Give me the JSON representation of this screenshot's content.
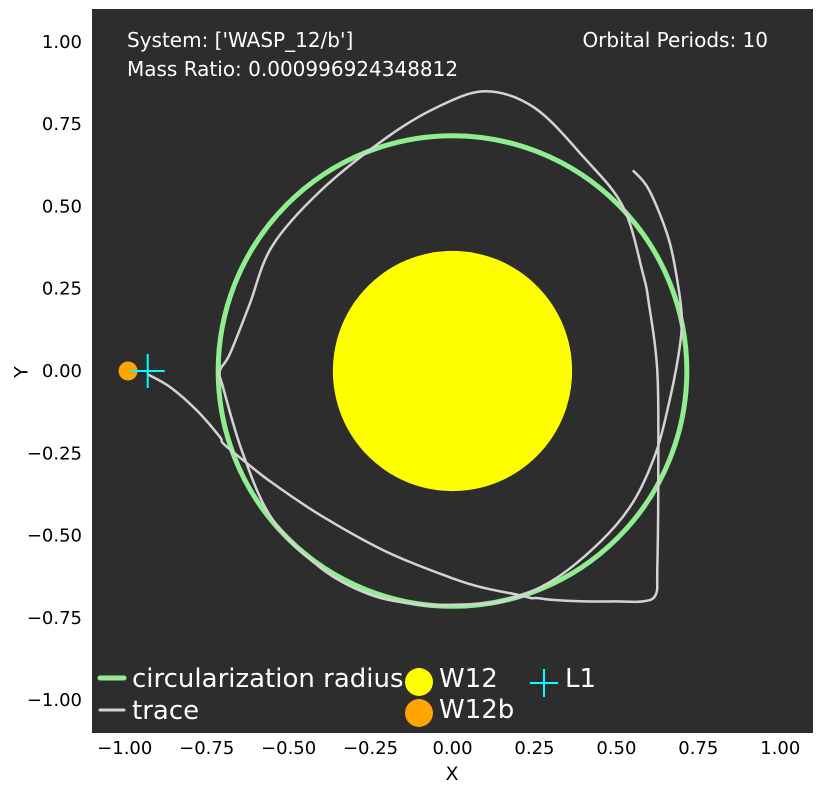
{
  "chart_data": {
    "type": "line",
    "xlabel": "X",
    "ylabel": "Y",
    "xlim": [
      -1.1,
      1.1
    ],
    "ylim": [
      -1.1,
      1.1
    ],
    "x_ticks": [
      "−1.00",
      "−0.75",
      "−0.50",
      "−0.25",
      "0.00",
      "0.25",
      "0.50",
      "0.75",
      "1.00"
    ],
    "y_ticks": [
      "1.00",
      "0.75",
      "0.50",
      "0.25",
      "0.00",
      "−0.25",
      "−0.50",
      "−0.75",
      "−1.00"
    ],
    "x_tick_values": [
      -1.0,
      -0.75,
      -0.5,
      -0.25,
      0.0,
      0.25,
      0.5,
      0.75,
      1.0
    ],
    "y_tick_values": [
      1.0,
      0.75,
      0.5,
      0.25,
      0.0,
      -0.25,
      -0.5,
      -0.75,
      -1.0
    ],
    "grid": false,
    "background": "#2d2d2d",
    "annotations": {
      "system": "System: ['WASP_12/b']",
      "mass_ratio": "Mass Ratio: 0.000996924348812",
      "periods": "Orbital Periods: 10"
    },
    "circularization_radius": 0.715,
    "star": {
      "name": "W12",
      "x": 0.0,
      "y": 0.0,
      "radius": 0.365,
      "color": "#ffff00"
    },
    "planet": {
      "name": "W12b",
      "x": -0.99,
      "y": 0.0,
      "color": "#ffa500"
    },
    "l1": {
      "name": "L1",
      "x": -0.93,
      "y": 0.0,
      "color": "#00ffff"
    },
    "series": [
      {
        "name": "circularization radius",
        "color": "#90ee90"
      },
      {
        "name": "trace",
        "color": "#d3d3d3",
        "x": [
          -0.93,
          -0.86,
          -0.78,
          -0.71,
          -0.7,
          -0.64,
          -0.55,
          -0.4,
          -0.2,
          0.0,
          0.1,
          0.2,
          0.24,
          0.25,
          0.26,
          0.3,
          0.4,
          0.5,
          0.58,
          0.62,
          0.625,
          0.628,
          0.625,
          0.6,
          0.58,
          0.52,
          0.4,
          0.25,
          0.1,
          -0.05,
          -0.2,
          -0.4,
          -0.55,
          -0.62,
          -0.68,
          -0.71,
          -0.7,
          -0.64,
          -0.55,
          -0.4,
          -0.25,
          -0.1,
          0.0,
          0.15,
          0.3,
          0.45,
          0.55,
          0.62,
          0.66,
          0.69,
          0.7,
          0.69,
          0.66,
          0.6,
          0.55
        ],
        "y": [
          -0.01,
          -0.05,
          -0.12,
          -0.2,
          -0.22,
          -0.27,
          -0.34,
          -0.44,
          -0.55,
          -0.63,
          -0.66,
          -0.68,
          -0.69,
          -0.69,
          -0.69,
          -0.695,
          -0.7,
          -0.7,
          -0.7,
          -0.68,
          -0.6,
          -0.3,
          0.0,
          0.2,
          0.3,
          0.5,
          0.65,
          0.8,
          0.85,
          0.8,
          0.71,
          0.55,
          0.38,
          0.2,
          0.05,
          0.0,
          -0.05,
          -0.25,
          -0.45,
          -0.6,
          -0.68,
          -0.71,
          -0.71,
          -0.7,
          -0.64,
          -0.52,
          -0.4,
          -0.25,
          -0.1,
          0.05,
          0.15,
          0.25,
          0.4,
          0.55,
          0.61
        ]
      }
    ],
    "legend": {
      "placement": "lower-left",
      "entries": [
        {
          "label": "circularization radius",
          "kind": "line",
          "color": "#90ee90"
        },
        {
          "label": "trace",
          "kind": "line",
          "color": "#d3d3d3"
        },
        {
          "label": "W12",
          "kind": "marker",
          "color": "#ffff00"
        },
        {
          "label": "W12b",
          "kind": "marker",
          "color": "#ffa500"
        },
        {
          "label": "L1",
          "kind": "plus",
          "color": "#00ffff"
        }
      ]
    }
  }
}
